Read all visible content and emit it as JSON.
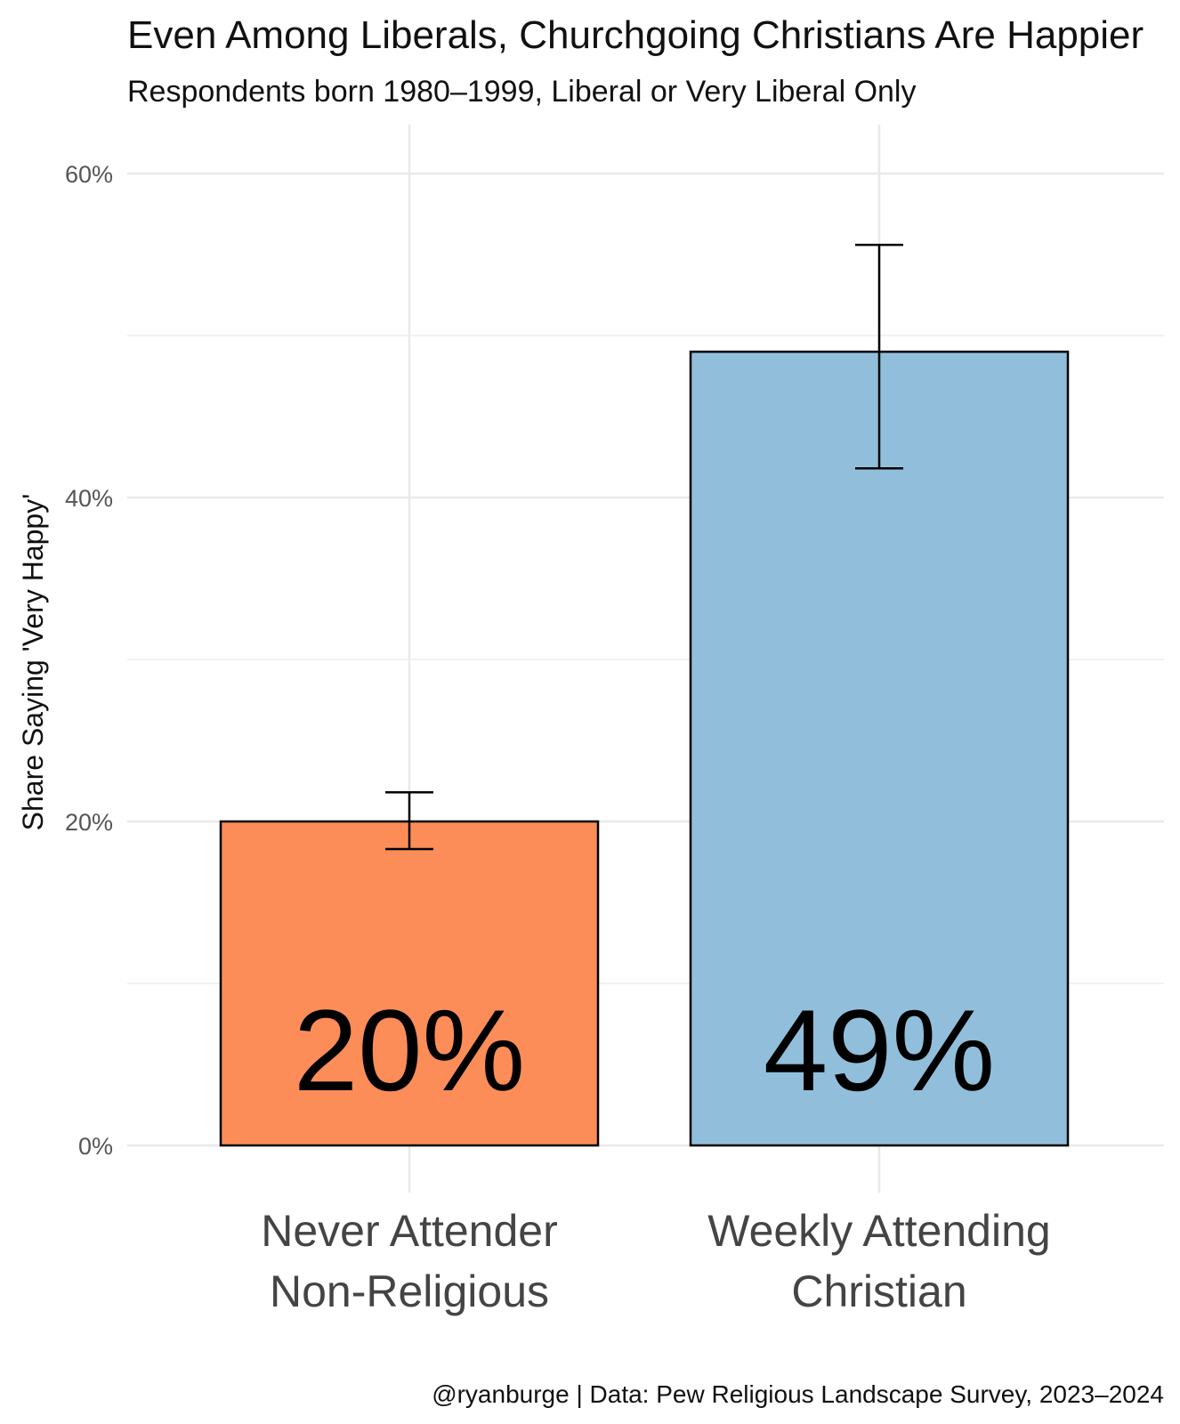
{
  "chart_data": {
    "type": "bar",
    "title": "Even Among Liberals, Churchgoing Christians Are Happier",
    "subtitle": "Respondents born 1980–1999, Liberal or Very Liberal Only",
    "ylabel": "Share Saying 'Very Happy'",
    "xlabel": "",
    "categories": [
      [
        "Never Attender",
        "Non-Religious"
      ],
      [
        "Weekly Attending",
        "Christian"
      ]
    ],
    "values": [
      0.2,
      0.49
    ],
    "value_labels": [
      "20%",
      "49%"
    ],
    "error_bars": [
      {
        "low": 0.183,
        "high": 0.218
      },
      {
        "low": 0.418,
        "high": 0.556
      }
    ],
    "colors": [
      "#fc8d59",
      "#91bfdb"
    ],
    "ylim": [
      0,
      0.6
    ],
    "yticks": [
      0,
      0.2,
      0.4,
      0.6
    ],
    "ytick_labels": [
      "0%",
      "20%",
      "40%",
      "60%"
    ],
    "grid": true,
    "legend": "none",
    "caption": "@ryanburge | Data: Pew Religious Landscape Survey, 2023–2024"
  }
}
